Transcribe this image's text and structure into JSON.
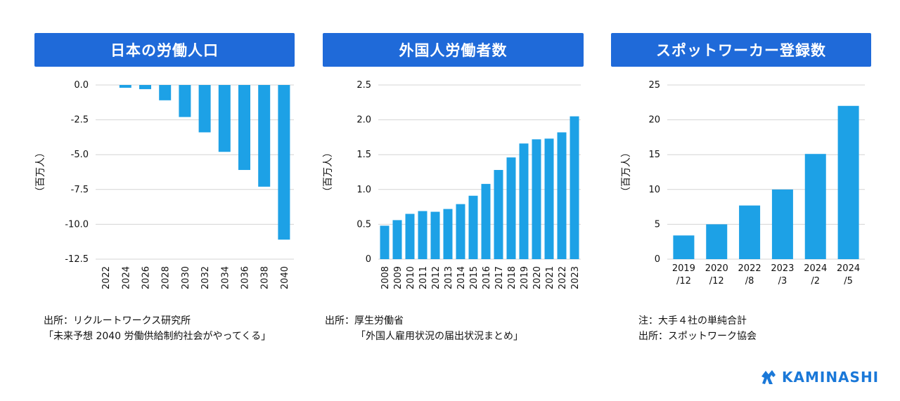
{
  "colors": {
    "bar": "#1da1e6",
    "title_bg": "#1f6ad9",
    "grid": "#d4d4d4",
    "brand": "#1a78d8"
  },
  "chart_data": [
    {
      "type": "bar",
      "title": "日本の労働人口",
      "ylabel": "（百万人）",
      "categories": [
        "2022",
        "2024",
        "2026",
        "2028",
        "2030",
        "2032",
        "2034",
        "2036",
        "2038",
        "2040"
      ],
      "values": [
        0,
        -0.2,
        -0.3,
        -1.1,
        -2.3,
        -3.4,
        -4.8,
        -6.1,
        -7.3,
        -11.1
      ],
      "ylim": [
        -12.5,
        0
      ],
      "yticks": [
        0,
        -2.5,
        -5,
        -7.5,
        -10,
        -12.5
      ],
      "ytick_labels": [
        "0.0",
        "-2.5",
        "-5.0",
        "-7.5",
        "-10.0",
        "-12.5"
      ],
      "grid": true,
      "source_lines": [
        "出所：リクルートワークス研究所",
        "「未来予想 2040 労働供給制約社会がやってくる」"
      ]
    },
    {
      "type": "bar",
      "title": "外国人労働者数",
      "ylabel": "（百万人）",
      "categories": [
        "2008",
        "2009",
        "2010",
        "2011",
        "2012",
        "2013",
        "2014",
        "2015",
        "2016",
        "2017",
        "2018",
        "2019",
        "2020",
        "2021",
        "2022",
        "2023"
      ],
      "values": [
        0.48,
        0.56,
        0.65,
        0.69,
        0.68,
        0.72,
        0.79,
        0.91,
        1.08,
        1.28,
        1.46,
        1.66,
        1.72,
        1.73,
        1.82,
        2.05
      ],
      "ylim": [
        0,
        2.5
      ],
      "yticks": [
        0,
        0.5,
        1,
        1.5,
        2,
        2.5
      ],
      "ytick_labels": [
        "0",
        "0.5",
        "1.0",
        "1.5",
        "2.0",
        "2.5"
      ],
      "grid": true,
      "source_lines": [
        "出所：厚生労働省",
        "「外国人雇用状況の届出状況まとめ」"
      ]
    },
    {
      "type": "bar",
      "title": "スポットワーカー登録数",
      "ylabel": "（百万人）",
      "categories": [
        "2019 /12",
        "2020 /12",
        "2022 /8",
        "2023 /3",
        "2024 /2",
        "2024 /5"
      ],
      "values": [
        3.4,
        5.0,
        7.7,
        10.0,
        15.1,
        22.0
      ],
      "ylim": [
        0,
        25
      ],
      "yticks": [
        0,
        5,
        10,
        15,
        20,
        25
      ],
      "ytick_labels": [
        "0",
        "5",
        "10",
        "15",
        "20",
        "25"
      ],
      "grid": true,
      "source_lines": [
        "注：大手４社の単純合計",
        "出所：スポットワーク協会"
      ]
    }
  ],
  "brand": {
    "name": "KAMINASHI",
    "icon": "kaminashi-logo-icon"
  }
}
